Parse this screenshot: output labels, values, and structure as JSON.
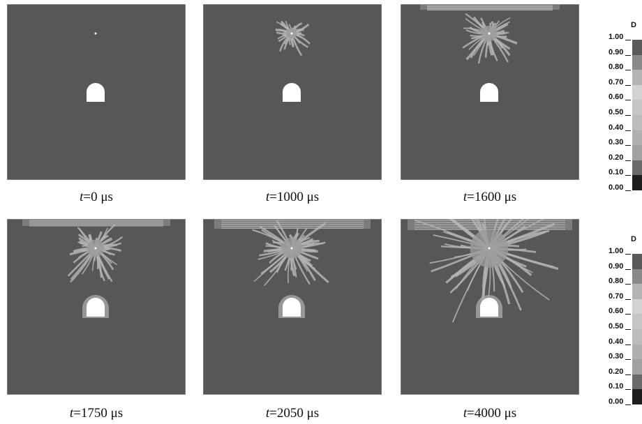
{
  "panels": [
    {
      "caption": "t=0 μs"
    },
    {
      "caption": "t=1000 μs"
    },
    {
      "caption": "t=1600 μs"
    },
    {
      "caption": "t=1750 μs"
    },
    {
      "caption": "t=2050 μs"
    },
    {
      "caption": "t=4000 μs"
    }
  ],
  "colorbars": [
    {
      "title": "D",
      "ticks": [
        "1.00",
        "0.90",
        "0.80",
        "0.70",
        "0.60",
        "0.50",
        "0.40",
        "0.30",
        "0.20",
        "0.10",
        "0.00"
      ]
    },
    {
      "title": "D",
      "ticks": [
        "1.00",
        "0.90",
        "0.80",
        "0.70",
        "0.60",
        "0.50",
        "0.40",
        "0.30",
        "0.20",
        "0.10",
        "0.00"
      ]
    }
  ]
}
